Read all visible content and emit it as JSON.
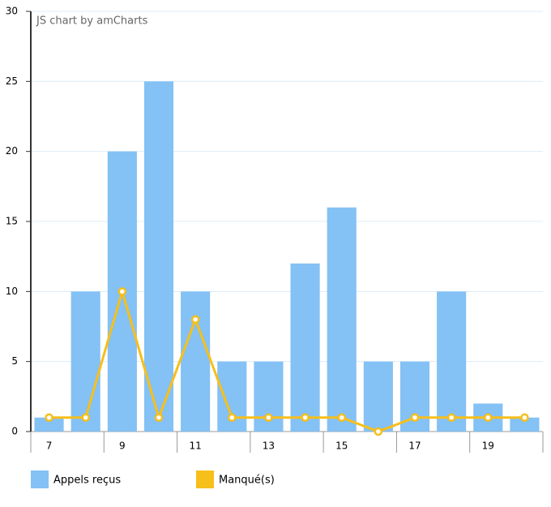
{
  "chart_data": {
    "type": "bar",
    "credit": "JS chart by amCharts",
    "categories": [
      "7",
      null,
      "9",
      null,
      "11",
      null,
      "13",
      null,
      "15",
      null,
      "17",
      null,
      "19",
      null
    ],
    "series": [
      {
        "name": "Appels reçus",
        "type": "bar",
        "color": "#84c1f5",
        "values": [
          1,
          10,
          20,
          25,
          10,
          5,
          5,
          12,
          16,
          5,
          5,
          10,
          2,
          1
        ]
      },
      {
        "name": "Manqué(s)",
        "type": "line",
        "color": "#f7bf1a",
        "values": [
          1,
          1,
          10,
          1,
          8,
          1,
          1,
          1,
          1,
          0,
          1,
          1,
          1,
          1
        ]
      }
    ],
    "ylim": [
      0,
      30
    ],
    "yticks": [
      0,
      5,
      10,
      15,
      20,
      25,
      30
    ],
    "grid": true
  }
}
